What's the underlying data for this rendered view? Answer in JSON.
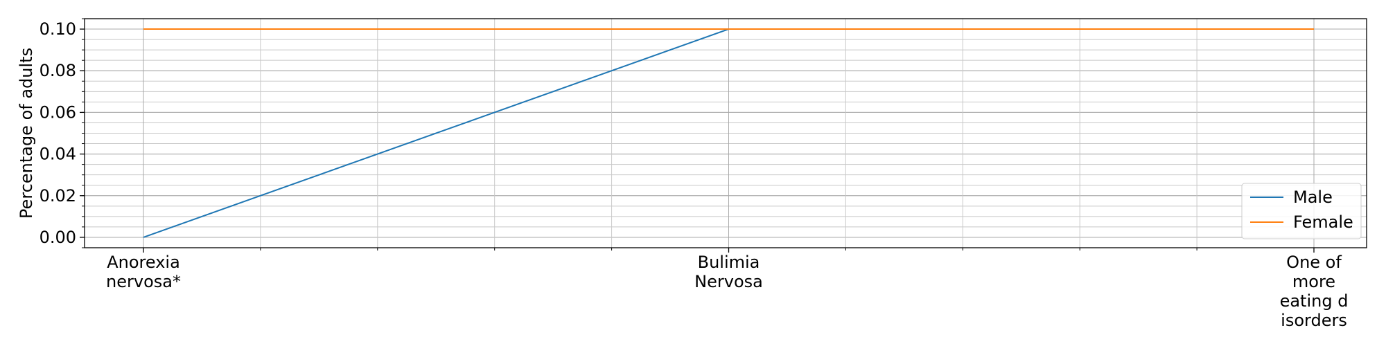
{
  "chart_data": {
    "type": "line",
    "title": "",
    "xlabel": "",
    "ylabel": "Percentage of adults",
    "categories": [
      [
        "Anorexia",
        "nervosa*"
      ],
      [
        "Bulimia",
        "Nervosa"
      ],
      [
        "One of",
        "more",
        "eating d",
        "isorders"
      ]
    ],
    "series": [
      {
        "name": "Male",
        "values": [
          0.0,
          0.1,
          0.1
        ],
        "color": "#1f77b4"
      },
      {
        "name": "Female",
        "values": [
          0.1,
          0.1,
          0.1
        ],
        "color": "#ff7f0e"
      }
    ],
    "ylim": [
      -0.005,
      0.105
    ],
    "yticks": [
      "0.00",
      "0.02",
      "0.04",
      "0.06",
      "0.08",
      "0.10"
    ],
    "grid": true,
    "minor_grid": true,
    "legend_position": "lower-right"
  }
}
